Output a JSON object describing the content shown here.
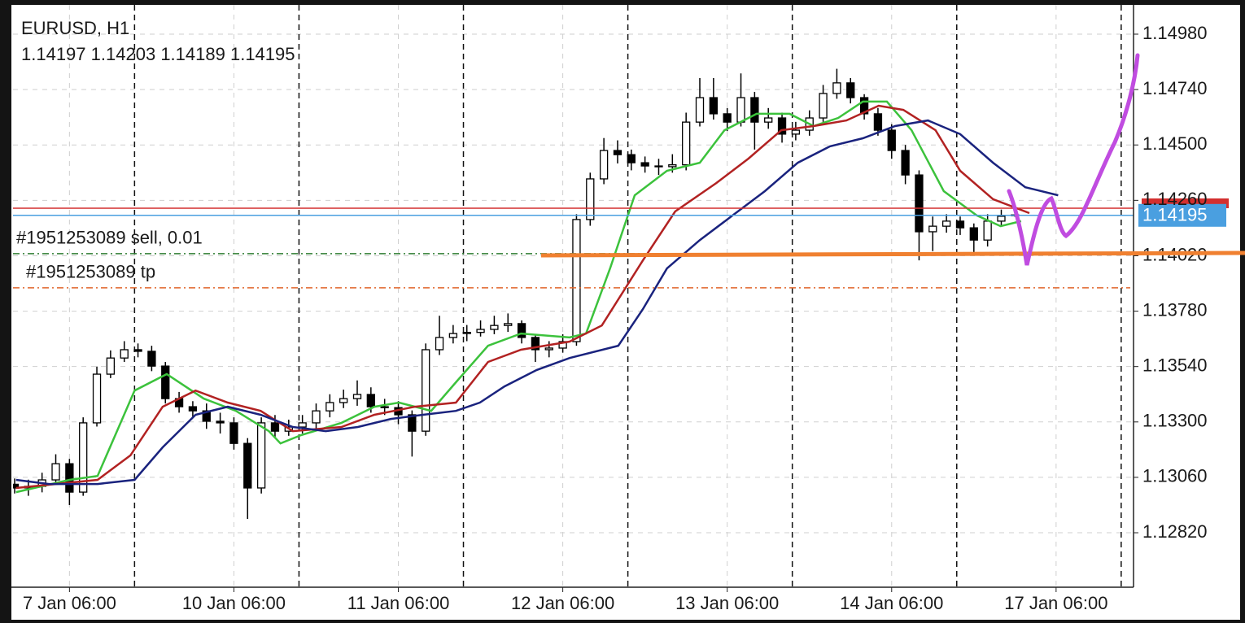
{
  "chart_data": {
    "type": "candlestick",
    "title": "EURUSD, H1",
    "up_color": "#ffffff",
    "down_color": "#000000",
    "candles": {
      "x": [
        0,
        2,
        4,
        6,
        8,
        10,
        12,
        14,
        16,
        18,
        20,
        22,
        24,
        26,
        28,
        30,
        32,
        34,
        36,
        38,
        40,
        42,
        44,
        46,
        48,
        50,
        52,
        54,
        56,
        58,
        60,
        62,
        64,
        66,
        68,
        70,
        72,
        74,
        76,
        78,
        80,
        82,
        84,
        86,
        88,
        90,
        92,
        94,
        96,
        98,
        100,
        102,
        104,
        106,
        108,
        110,
        112,
        114,
        116,
        118,
        120,
        122,
        124,
        126,
        128,
        130,
        132,
        134,
        136,
        138,
        140,
        142,
        144,
        146
      ],
      "open": [
        1.1303,
        1.13014,
        1.13021,
        1.13049,
        1.13119,
        1.12996,
        1.13296,
        1.13507,
        1.13577,
        1.13613,
        1.13606,
        1.13542,
        1.13401,
        1.13366,
        1.13348,
        1.13303,
        1.13296,
        1.13207,
        1.13014,
        1.13296,
        1.1326,
        1.13278,
        1.13296,
        1.13348,
        1.13384,
        1.13401,
        1.13419,
        1.13366,
        1.13362,
        1.13331,
        1.1326,
        1.13613,
        1.13666,
        1.13683,
        1.13688,
        1.13701,
        1.13718,
        1.13726,
        1.13666,
        1.13613,
        1.1362,
        1.13648,
        1.14177,
        1.14353,
        1.14476,
        1.14458,
        1.14423,
        1.14409,
        1.14406,
        1.14414,
        1.14599,
        1.14705,
        1.14635,
        1.14599,
        1.14705,
        1.14599,
        1.14617,
        1.14547,
        1.14564,
        1.14617,
        1.14723,
        1.14769,
        1.14705,
        1.14635,
        1.14564,
        1.14476,
        1.1437,
        1.14124,
        1.14148,
        1.1417,
        1.14141,
        1.14088,
        1.1417,
        1.14197
      ],
      "high": [
        1.13055,
        1.1305,
        1.1308,
        1.1316,
        1.1314,
        1.1332,
        1.1354,
        1.1361,
        1.1365,
        1.1364,
        1.1363,
        1.1356,
        1.1343,
        1.1339,
        1.1338,
        1.1334,
        1.1332,
        1.1323,
        1.1332,
        1.1333,
        1.1331,
        1.1333,
        1.1338,
        1.1342,
        1.1344,
        1.1348,
        1.1345,
        1.134,
        1.1339,
        1.1335,
        1.1364,
        1.1376,
        1.1372,
        1.1372,
        1.1374,
        1.1376,
        1.1377,
        1.1374,
        1.1368,
        1.1365,
        1.1368,
        1.142,
        1.1438,
        1.1453,
        1.1452,
        1.1448,
        1.1445,
        1.1444,
        1.1446,
        1.1464,
        1.1479,
        1.1479,
        1.1466,
        1.1481,
        1.1473,
        1.1466,
        1.1464,
        1.146,
        1.1465,
        1.1476,
        1.1483,
        1.1479,
        1.1472,
        1.1466,
        1.1459,
        1.145,
        1.1439,
        1.1419,
        1.142,
        1.1419,
        1.1416,
        1.142,
        1.1422,
        1.14203
      ],
      "low": [
        1.1299,
        1.1298,
        1.12995,
        1.1303,
        1.1294,
        1.1298,
        1.1328,
        1.1349,
        1.1356,
        1.1358,
        1.1352,
        1.1338,
        1.1334,
        1.1332,
        1.1327,
        1.1325,
        1.1318,
        1.1288,
        1.1299,
        1.1323,
        1.1324,
        1.1325,
        1.1327,
        1.1332,
        1.1336,
        1.1337,
        1.1334,
        1.1333,
        1.1329,
        1.1315,
        1.1324,
        1.1359,
        1.1364,
        1.1365,
        1.1367,
        1.1368,
        1.1369,
        1.1364,
        1.1356,
        1.1358,
        1.136,
        1.1363,
        1.1415,
        1.1433,
        1.1442,
        1.1439,
        1.1438,
        1.1437,
        1.1438,
        1.1439,
        1.1458,
        1.1461,
        1.1456,
        1.1458,
        1.1448,
        1.1457,
        1.1451,
        1.1452,
        1.1454,
        1.146,
        1.147,
        1.1468,
        1.1461,
        1.1454,
        1.1444,
        1.1433,
        1.14,
        1.1404,
        1.1412,
        1.1411,
        1.1403,
        1.1406,
        1.1415,
        1.14189
      ],
      "close": [
        1.13014,
        1.13021,
        1.13049,
        1.13119,
        1.12996,
        1.13296,
        1.13507,
        1.13577,
        1.13613,
        1.13606,
        1.13542,
        1.13401,
        1.13366,
        1.13348,
        1.13303,
        1.13296,
        1.13207,
        1.13014,
        1.13296,
        1.1326,
        1.13278,
        1.13296,
        1.13348,
        1.13384,
        1.13401,
        1.13419,
        1.13366,
        1.13362,
        1.13331,
        1.1326,
        1.13613,
        1.13666,
        1.13683,
        1.13688,
        1.13701,
        1.13718,
        1.13726,
        1.13666,
        1.13613,
        1.1362,
        1.13648,
        1.14177,
        1.14353,
        1.14476,
        1.14458,
        1.14423,
        1.14409,
        1.14406,
        1.14414,
        1.14599,
        1.14705,
        1.14635,
        1.14599,
        1.14705,
        1.14599,
        1.14617,
        1.14547,
        1.14564,
        1.14617,
        1.14723,
        1.14769,
        1.14705,
        1.14635,
        1.14564,
        1.14476,
        1.1437,
        1.14124,
        1.14148,
        1.1417,
        1.14141,
        1.14088,
        1.1417,
        1.14191,
        1.14195
      ]
    },
    "series": [
      {
        "color": "#3cc23c",
        "x": [
          0.2,
          8,
          12.1,
          17.5,
          22.2,
          27.6,
          32.3,
          37.1,
          38.8,
          41.8,
          47.7,
          52.5,
          56.1,
          60.8,
          64.4,
          69.1,
          73.9,
          81,
          83.4,
          86.9,
          90.5,
          95.2,
          100,
          103.6,
          108.3,
          113.1,
          116.6,
          120.2,
          123.8,
          127.3,
          130.9,
          135.6,
          140.4,
          143.9,
          146.9
        ],
        "values": [
          1.12996,
          1.13049,
          1.13066,
          1.13436,
          1.13507,
          1.13401,
          1.13348,
          1.1326,
          1.13207,
          1.13243,
          1.13296,
          1.13366,
          1.13384,
          1.13348,
          1.13472,
          1.1363,
          1.13683,
          1.13666,
          1.13683,
          1.13965,
          1.14282,
          1.14388,
          1.14423,
          1.14564,
          1.14635,
          1.14635,
          1.14582,
          1.14617,
          1.14688,
          1.14688,
          1.14564,
          1.143,
          1.14195,
          1.14148,
          1.1417
        ]
      },
      {
        "color": "#b22222",
        "x": [
          0.2,
          12.1,
          16.9,
          21.6,
          26.4,
          31.1,
          35.9,
          40.6,
          47.7,
          52.5,
          58.4,
          64.4,
          69.1,
          73.9,
          81,
          85.7,
          91.7,
          96.4,
          102.4,
          107.1,
          111.9,
          116.6,
          121.4,
          126.1,
          129.7,
          134.4,
          138,
          142.8,
          148.1
        ],
        "values": [
          1.13014,
          1.13049,
          1.13155,
          1.13366,
          1.13436,
          1.13384,
          1.13348,
          1.1326,
          1.13278,
          1.13331,
          1.13366,
          1.13384,
          1.1356,
          1.13613,
          1.13648,
          1.13718,
          1.14,
          1.14212,
          1.14335,
          1.14441,
          1.14564,
          1.14582,
          1.14606,
          1.1467,
          1.14652,
          1.14564,
          1.14388,
          1.14265,
          1.14205
        ]
      },
      {
        "color": "#1a237e",
        "x": [
          0.2,
          5,
          12.1,
          17.5,
          21.6,
          26.4,
          31.1,
          35.9,
          40.6,
          45.4,
          50.1,
          54.9,
          59.6,
          64.4,
          67.9,
          71.5,
          76.2,
          81,
          88.1,
          91.7,
          95.2,
          100,
          104.8,
          109.5,
          114.3,
          119,
          123.8,
          128.5,
          133.3,
          138,
          142.8,
          147.5,
          152.3
        ],
        "values": [
          1.13049,
          1.13031,
          1.13031,
          1.13049,
          1.1319,
          1.13331,
          1.13366,
          1.13331,
          1.13278,
          1.1326,
          1.13278,
          1.13313,
          1.13331,
          1.13348,
          1.13384,
          1.13454,
          1.13525,
          1.13577,
          1.1363,
          1.13789,
          1.13965,
          1.14088,
          1.14195,
          1.143,
          1.14423,
          1.14494,
          1.14529,
          1.14582,
          1.14606,
          1.14547,
          1.14423,
          1.14317,
          1.14282
        ]
      }
    ],
    "ask_line": {
      "value": 1.14226,
      "color": "#d32f2f"
    },
    "price_line": {
      "value": 1.14195,
      "color": "#4a9fe0"
    },
    "orders": [
      {
        "label": "#1951253089 sell, 0.01",
        "value": 1.14029,
        "color": "#2e7d32"
      },
      {
        "label": "#1951253089 tp",
        "value": 1.13881,
        "color": "#e0662a"
      }
    ],
    "xlim": [
      0,
      163.3
    ],
    "ylim": [
      1.12584,
      1.15128
    ],
    "xticks": [
      {
        "value": 8,
        "label": "7 Jan 06:00"
      },
      {
        "value": 32,
        "label": "10 Jan 06:00"
      },
      {
        "value": 56,
        "label": "11 Jan 06:00"
      },
      {
        "value": 80,
        "label": "12 Jan 06:00"
      },
      {
        "value": 104,
        "label": "13 Jan 06:00"
      },
      {
        "value": 128,
        "label": "14 Jan 06:00"
      },
      {
        "value": 152,
        "label": "17 Jan 06:00"
      }
    ],
    "day_separators": [
      17.5,
      41.5,
      65.5,
      89.5,
      113.5,
      137.5,
      161.5
    ],
    "yticks": [
      {
        "value": 1.1282,
        "label": "1.12820"
      },
      {
        "value": 1.1306,
        "label": "1.13060"
      },
      {
        "value": 1.133,
        "label": "1.13300"
      },
      {
        "value": 1.1354,
        "label": "1.13540"
      },
      {
        "value": 1.1378,
        "label": "1.13780"
      },
      {
        "value": 1.1402,
        "label": "1.14020"
      },
      {
        "value": 1.1426,
        "label": "1.14260"
      },
      {
        "value": 1.145,
        "label": "1.14500"
      },
      {
        "value": 1.1474,
        "label": "1.14740"
      },
      {
        "value": 1.1498,
        "label": "1.14980"
      }
    ],
    "grid": true
  }
}
